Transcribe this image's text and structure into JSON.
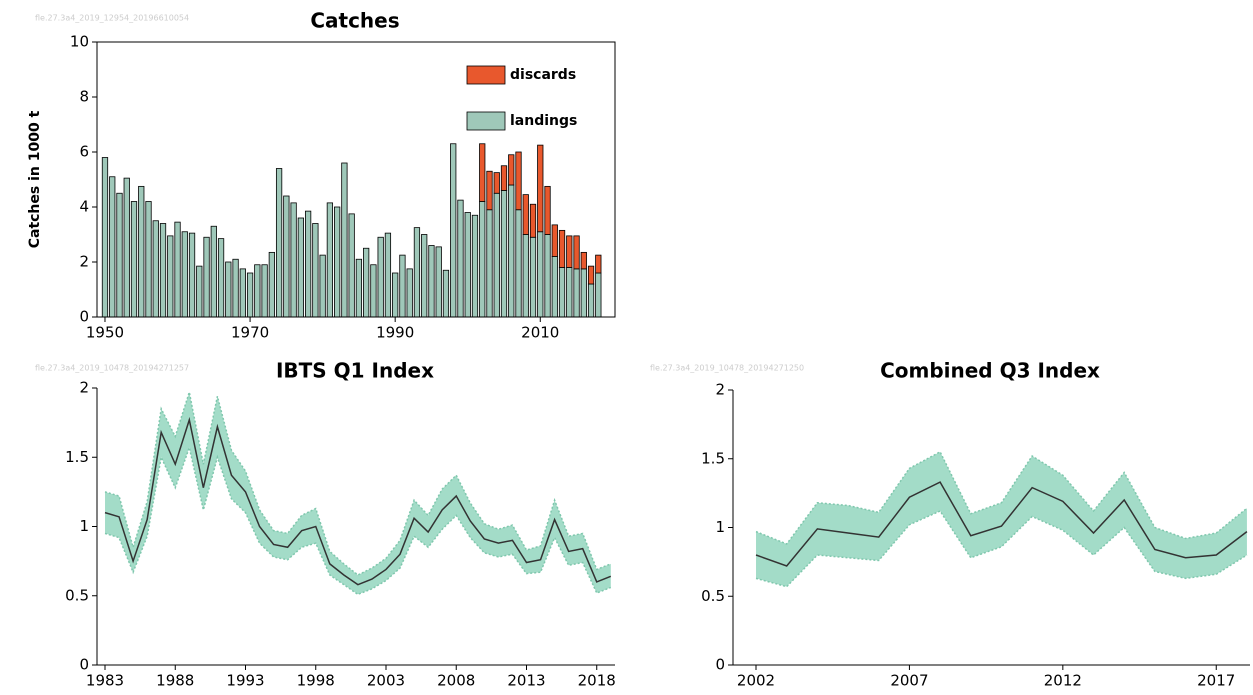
{
  "chart_data": [
    {
      "type": "bar",
      "title": "Catches",
      "watermark": "fle.27.3a4_2019_12954_20196610054",
      "ylabel": "Catches in 1000 t",
      "x": [
        1950,
        1951,
        1952,
        1953,
        1954,
        1955,
        1956,
        1957,
        1958,
        1959,
        1960,
        1961,
        1962,
        1963,
        1964,
        1965,
        1966,
        1967,
        1968,
        1969,
        1970,
        1971,
        1972,
        1973,
        1974,
        1975,
        1976,
        1977,
        1978,
        1979,
        1980,
        1981,
        1982,
        1983,
        1984,
        1985,
        1986,
        1987,
        1988,
        1989,
        1990,
        1991,
        1992,
        1993,
        1994,
        1995,
        1996,
        1997,
        1998,
        1999,
        2000,
        2001,
        2002,
        2003,
        2004,
        2005,
        2006,
        2007,
        2008,
        2009,
        2010,
        2011,
        2012,
        2013,
        2014,
        2015,
        2016,
        2017,
        2018
      ],
      "series": [
        {
          "name": "landings",
          "color": "#9fc8b9",
          "values": [
            5.8,
            5.1,
            4.5,
            5.05,
            4.2,
            4.75,
            4.2,
            3.5,
            3.4,
            2.95,
            3.45,
            3.1,
            3.05,
            1.85,
            2.9,
            3.3,
            2.85,
            2.0,
            2.1,
            1.75,
            1.6,
            1.9,
            1.9,
            2.35,
            5.4,
            4.4,
            4.15,
            3.6,
            3.85,
            3.4,
            2.25,
            4.15,
            4.0,
            5.6,
            3.75,
            2.1,
            2.5,
            1.9,
            2.9,
            3.05,
            1.6,
            2.25,
            1.75,
            3.25,
            3.0,
            2.6,
            2.55,
            1.7,
            6.3,
            4.25,
            3.8,
            3.7,
            4.2,
            3.9,
            4.5,
            4.6,
            4.8,
            3.9,
            3.0,
            2.9,
            3.1,
            3.0,
            2.2,
            1.8,
            1.8,
            1.75,
            1.75,
            1.2,
            1.6
          ]
        },
        {
          "name": "discards",
          "color": "#e8582d",
          "values": [
            null,
            null,
            null,
            null,
            null,
            null,
            null,
            null,
            null,
            null,
            null,
            null,
            null,
            null,
            null,
            null,
            null,
            null,
            null,
            null,
            null,
            null,
            null,
            null,
            null,
            null,
            null,
            null,
            null,
            null,
            null,
            null,
            null,
            null,
            null,
            null,
            null,
            null,
            null,
            null,
            null,
            null,
            null,
            null,
            null,
            null,
            null,
            null,
            null,
            null,
            null,
            null,
            2.1,
            1.4,
            0.75,
            0.9,
            1.1,
            2.1,
            1.45,
            1.2,
            3.15,
            1.75,
            1.15,
            1.35,
            1.15,
            1.2,
            0.6,
            0.65,
            0.65
          ]
        }
      ],
      "xlim": [
        1948.9,
        2020.3
      ],
      "xticks": [
        1950,
        1970,
        1990,
        2010
      ],
      "ylim": [
        0,
        10
      ],
      "yticks": [
        0,
        2,
        4,
        6,
        8,
        10
      ],
      "stacked": true
    },
    {
      "type": "line",
      "title": "IBTS Q1 Index",
      "watermark": "fle.27.3a4_2019_10478_20194271257",
      "x": [
        1983,
        1984,
        1985,
        1986,
        1987,
        1988,
        1989,
        1990,
        1991,
        1992,
        1993,
        1994,
        1995,
        1996,
        1997,
        1998,
        1999,
        2000,
        2001,
        2002,
        2003,
        2004,
        2005,
        2006,
        2007,
        2008,
        2009,
        2010,
        2011,
        2012,
        2013,
        2014,
        2015,
        2016,
        2017,
        2018,
        2019
      ],
      "values": [
        1.1,
        1.07,
        0.75,
        1.05,
        1.68,
        1.45,
        1.77,
        1.28,
        1.72,
        1.37,
        1.25,
        1.0,
        0.87,
        0.85,
        0.97,
        1.0,
        0.73,
        0.65,
        0.58,
        0.62,
        0.69,
        0.8,
        1.06,
        0.96,
        1.12,
        1.22,
        1.04,
        0.91,
        0.88,
        0.9,
        0.74,
        0.76,
        1.05,
        0.82,
        0.84,
        0.6,
        0.64
      ],
      "lower": [
        0.95,
        0.92,
        0.67,
        0.93,
        1.5,
        1.28,
        1.57,
        1.12,
        1.5,
        1.2,
        1.1,
        0.88,
        0.78,
        0.76,
        0.85,
        0.88,
        0.65,
        0.58,
        0.51,
        0.55,
        0.61,
        0.7,
        0.93,
        0.85,
        0.98,
        1.08,
        0.92,
        0.81,
        0.78,
        0.8,
        0.66,
        0.67,
        0.92,
        0.72,
        0.74,
        0.52,
        0.56
      ],
      "upper": [
        1.25,
        1.22,
        0.85,
        1.18,
        1.85,
        1.65,
        1.97,
        1.45,
        1.94,
        1.55,
        1.4,
        1.12,
        0.97,
        0.95,
        1.08,
        1.13,
        0.82,
        0.73,
        0.65,
        0.7,
        0.77,
        0.9,
        1.19,
        1.08,
        1.27,
        1.37,
        1.17,
        1.02,
        0.98,
        1.01,
        0.83,
        0.86,
        1.19,
        0.93,
        0.95,
        0.69,
        0.73
      ],
      "color": "#333333",
      "band_color": "#a3dcc8",
      "xlim": [
        1982.43,
        2019.3
      ],
      "xticks": [
        1983,
        1988,
        1993,
        1998,
        2003,
        2008,
        2013,
        2018
      ],
      "ylim": [
        0,
        2
      ],
      "yticks": [
        0,
        0.5,
        1,
        1.5,
        2
      ]
    },
    {
      "type": "line",
      "title": "Combined Q3 Index",
      "watermark": "fle.27.3a4_2019_10478_20194271250",
      "x": [
        2002,
        2003,
        2004,
        2005,
        2006,
        2007,
        2008,
        2009,
        2010,
        2011,
        2012,
        2013,
        2014,
        2015,
        2016,
        2017,
        2018
      ],
      "values": [
        0.8,
        0.72,
        0.99,
        0.96,
        0.93,
        1.22,
        1.33,
        0.94,
        1.01,
        1.29,
        1.19,
        0.96,
        1.2,
        0.84,
        0.78,
        0.8,
        0.97
      ],
      "lower": [
        0.63,
        0.57,
        0.8,
        0.78,
        0.76,
        1.02,
        1.12,
        0.78,
        0.86,
        1.08,
        0.98,
        0.8,
        1.0,
        0.68,
        0.63,
        0.66,
        0.8
      ],
      "upper": [
        0.97,
        0.88,
        1.18,
        1.16,
        1.11,
        1.43,
        1.55,
        1.1,
        1.18,
        1.52,
        1.38,
        1.12,
        1.4,
        1.0,
        0.92,
        0.96,
        1.14
      ],
      "color": "#333333",
      "band_color": "#a3dcc8",
      "xlim": [
        2001.25,
        2018.1
      ],
      "xticks": [
        2002,
        2007,
        2012,
        2017
      ],
      "ylim": [
        0,
        2
      ],
      "yticks": [
        0,
        0.5,
        1,
        1.5,
        2
      ]
    }
  ]
}
